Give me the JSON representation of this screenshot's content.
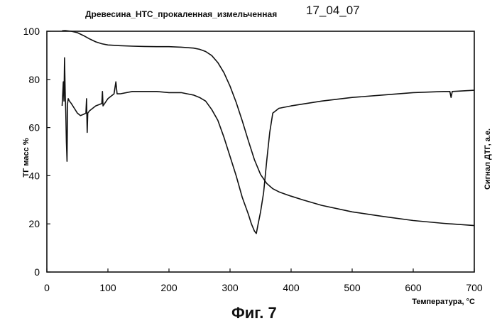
{
  "header": {
    "title": "Древесина_НТС_прокаленная_измельченная",
    "date": "17_04_07"
  },
  "figure_caption": "Фиг. 7",
  "chart_data": {
    "type": "line",
    "xlabel": "Температура, °С",
    "ylabel": "ТГ масс %",
    "y2label": "Сигнал ДТГ, a.e.",
    "xlim": [
      0,
      700
    ],
    "ylim": [
      0,
      100
    ],
    "xticks": [
      0,
      100,
      200,
      300,
      400,
      500,
      600,
      700
    ],
    "yticks": [
      0,
      20,
      40,
      60,
      80,
      100
    ],
    "grid": false,
    "series": [
      {
        "key": "tg",
        "x": [
          25,
          30,
          40,
          50,
          60,
          70,
          80,
          90,
          100,
          120,
          140,
          160,
          180,
          200,
          220,
          240,
          250,
          260,
          270,
          280,
          290,
          300,
          310,
          320,
          330,
          340,
          350,
          360,
          370,
          380,
          390,
          400,
          420,
          450,
          500,
          550,
          600,
          650,
          700
        ],
        "y": [
          100.2,
          100.3,
          100.0,
          99.4,
          98.2,
          96.8,
          95.6,
          94.8,
          94.3,
          94.0,
          93.8,
          93.7,
          93.6,
          93.6,
          93.4,
          93.0,
          92.5,
          91.6,
          89.9,
          87.0,
          82.8,
          77.2,
          70.5,
          62.8,
          54.5,
          46.6,
          40.5,
          36.8,
          34.6,
          33.3,
          32.4,
          31.5,
          29.9,
          27.7,
          25.0,
          23.1,
          21.4,
          20.2,
          19.3
        ]
      },
      {
        "key": "dtg",
        "x": [
          25,
          27,
          28,
          29,
          30,
          31,
          32,
          33,
          34,
          35,
          37,
          40,
          45,
          50,
          55,
          60,
          64,
          65,
          66,
          67,
          70,
          80,
          90,
          91,
          92,
          100,
          110,
          113,
          115,
          120,
          140,
          160,
          180,
          200,
          210,
          220,
          230,
          240,
          250,
          260,
          270,
          280,
          290,
          300,
          310,
          320,
          330,
          335,
          340,
          343,
          346,
          350,
          355,
          360,
          365,
          370,
          380,
          400,
          450,
          500,
          550,
          600,
          650,
          660,
          662,
          664,
          700
        ],
        "y": [
          69,
          79,
          71,
          89,
          75,
          66,
          54,
          46,
          70,
          72,
          71,
          70,
          68,
          66,
          65,
          65.5,
          66,
          72,
          58,
          66,
          67,
          69,
          70,
          75,
          69,
          72,
          74,
          79,
          74,
          74,
          75,
          75,
          75,
          74.5,
          74.5,
          74.5,
          74,
          73.5,
          72.5,
          71,
          67.5,
          63,
          56,
          48,
          40,
          31,
          24,
          20,
          17,
          16,
          20,
          25,
          33,
          46,
          58,
          66,
          68,
          69,
          71,
          72.5,
          73.5,
          74.5,
          75,
          75,
          72.5,
          75,
          75.5
        ]
      }
    ]
  }
}
